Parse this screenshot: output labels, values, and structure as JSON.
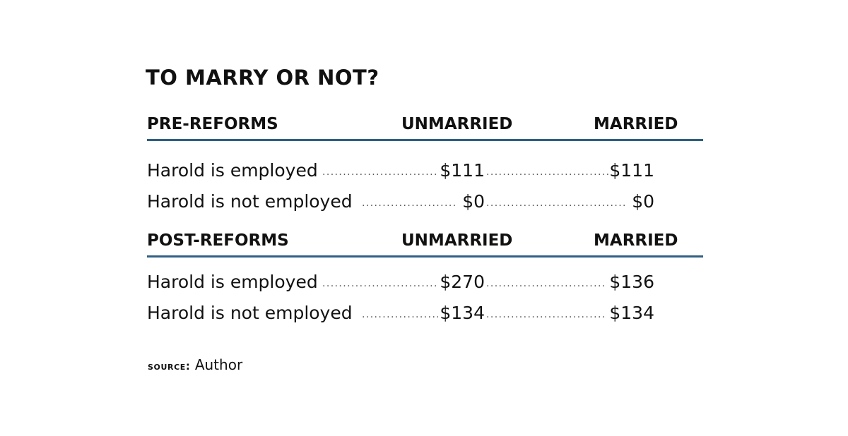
{
  "chart_data": {
    "type": "table",
    "title": "TO MARRY OR NOT?",
    "columns": [
      "UNMARRIED",
      "MARRIED"
    ],
    "sections": [
      {
        "label": "PRE-REFORMS",
        "rows": [
          {
            "label": "Harold is employed",
            "unmarried": "$111",
            "married": "$111"
          },
          {
            "label": "Harold is not employed",
            "unmarried": "$0",
            "married": "$0"
          }
        ]
      },
      {
        "label": "POST-REFORMS",
        "rows": [
          {
            "label": "Harold is employed",
            "unmarried": "$270",
            "married": "$136"
          },
          {
            "label": "Harold is not employed",
            "unmarried": "$134",
            "married": "$134"
          }
        ]
      }
    ],
    "source_label": "SOURCE:",
    "source": "Author"
  },
  "colors": {
    "rule": "#2f5f82",
    "text": "#111111"
  }
}
